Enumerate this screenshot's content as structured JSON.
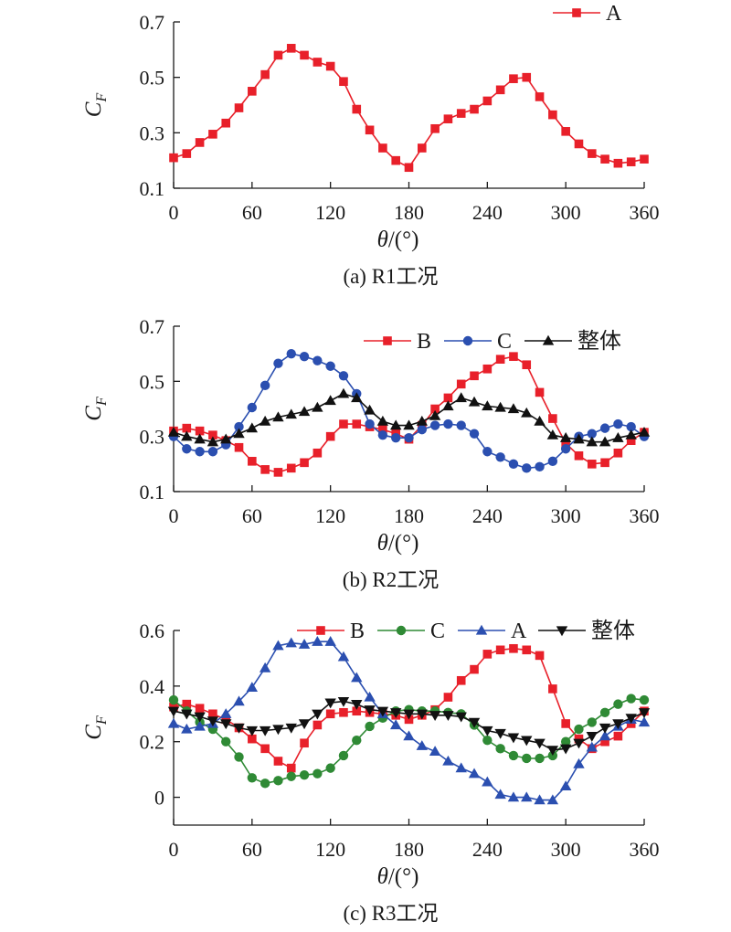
{
  "colors": {
    "red": "#e8202a",
    "blue": "#2b4fb0",
    "green": "#2f8a35",
    "black": "#111111"
  },
  "chart_data": [
    {
      "type": "line",
      "caption": "(a) R1工况",
      "xlabel": "θ/(°)",
      "ylabel": "C",
      "ylabel_sub": "F",
      "xlim": [
        0,
        360
      ],
      "ylim": [
        0.1,
        0.7
      ],
      "xticks": [
        0,
        60,
        120,
        180,
        240,
        300,
        360
      ],
      "yticks": [
        0.1,
        0.3,
        0.5,
        0.7
      ],
      "ytick_labels": [
        "0.1",
        "0.3",
        "0.5",
        "0.7"
      ],
      "legend_placement": "top-right",
      "x": [
        0,
        10,
        20,
        30,
        40,
        50,
        60,
        70,
        80,
        90,
        100,
        110,
        120,
        130,
        140,
        150,
        160,
        170,
        180,
        190,
        200,
        210,
        220,
        230,
        240,
        250,
        260,
        270,
        280,
        290,
        300,
        310,
        320,
        330,
        340,
        350,
        360
      ],
      "series": [
        {
          "name": "A",
          "color": "#e8202a",
          "marker": "square",
          "values": [
            0.21,
            0.225,
            0.265,
            0.295,
            0.335,
            0.39,
            0.45,
            0.51,
            0.58,
            0.605,
            0.58,
            0.555,
            0.54,
            0.485,
            0.385,
            0.31,
            0.245,
            0.2,
            0.175,
            0.245,
            0.315,
            0.35,
            0.37,
            0.385,
            0.415,
            0.455,
            0.495,
            0.5,
            0.43,
            0.365,
            0.305,
            0.26,
            0.225,
            0.205,
            0.19,
            0.195,
            0.205
          ]
        }
      ]
    },
    {
      "type": "line",
      "caption": "(b) R2工况",
      "xlabel": "θ/(°)",
      "ylabel": "C",
      "ylabel_sub": "F",
      "xlim": [
        0,
        360
      ],
      "ylim": [
        0.1,
        0.7
      ],
      "xticks": [
        0,
        60,
        120,
        180,
        240,
        300,
        360
      ],
      "yticks": [
        0.1,
        0.3,
        0.5,
        0.7
      ],
      "ytick_labels": [
        "0.1",
        "0.3",
        "0.5",
        "0.7"
      ],
      "legend_placement": "top-right",
      "x": [
        0,
        10,
        20,
        30,
        40,
        50,
        60,
        70,
        80,
        90,
        100,
        110,
        120,
        130,
        140,
        150,
        160,
        170,
        180,
        190,
        200,
        210,
        220,
        230,
        240,
        250,
        260,
        270,
        280,
        290,
        300,
        310,
        320,
        330,
        340,
        350,
        360
      ],
      "series": [
        {
          "name": "B",
          "color": "#e8202a",
          "marker": "square",
          "values": [
            0.32,
            0.33,
            0.32,
            0.305,
            0.285,
            0.26,
            0.21,
            0.18,
            0.17,
            0.185,
            0.205,
            0.24,
            0.3,
            0.345,
            0.345,
            0.335,
            0.325,
            0.31,
            0.29,
            0.34,
            0.4,
            0.44,
            0.49,
            0.52,
            0.545,
            0.58,
            0.59,
            0.56,
            0.46,
            0.365,
            0.275,
            0.23,
            0.2,
            0.205,
            0.24,
            0.285,
            0.315
          ]
        },
        {
          "name": "C",
          "color": "#2b4fb0",
          "marker": "circle",
          "values": [
            0.3,
            0.255,
            0.245,
            0.245,
            0.27,
            0.335,
            0.405,
            0.485,
            0.565,
            0.6,
            0.59,
            0.575,
            0.555,
            0.52,
            0.455,
            0.345,
            0.305,
            0.295,
            0.295,
            0.325,
            0.34,
            0.345,
            0.34,
            0.31,
            0.245,
            0.225,
            0.2,
            0.185,
            0.19,
            0.21,
            0.255,
            0.3,
            0.31,
            0.33,
            0.345,
            0.335,
            0.3
          ]
        },
        {
          "name": "整体",
          "color": "#111111",
          "marker": "triangle-up",
          "values": [
            0.315,
            0.3,
            0.29,
            0.28,
            0.29,
            0.31,
            0.33,
            0.355,
            0.37,
            0.38,
            0.39,
            0.405,
            0.43,
            0.455,
            0.44,
            0.395,
            0.355,
            0.34,
            0.34,
            0.355,
            0.375,
            0.41,
            0.44,
            0.425,
            0.41,
            0.405,
            0.4,
            0.385,
            0.355,
            0.305,
            0.295,
            0.29,
            0.28,
            0.28,
            0.295,
            0.305,
            0.315
          ]
        }
      ]
    },
    {
      "type": "line",
      "caption": "(c) R3工况",
      "xlabel": "θ/(°)",
      "ylabel": "C",
      "ylabel_sub": "F",
      "xlim": [
        0,
        360
      ],
      "ylim": [
        -0.1,
        0.6
      ],
      "xticks": [
        0,
        60,
        120,
        180,
        240,
        300,
        360
      ],
      "yticks": [
        0,
        0.2,
        0.4,
        0.6
      ],
      "ytick_labels": [
        "0",
        "0.2",
        "0.4",
        "0.6"
      ],
      "legend_placement": "top-right",
      "x": [
        0,
        10,
        20,
        30,
        40,
        50,
        60,
        70,
        80,
        90,
        100,
        110,
        120,
        130,
        140,
        150,
        160,
        170,
        180,
        190,
        200,
        210,
        220,
        230,
        240,
        250,
        260,
        270,
        280,
        290,
        300,
        310,
        320,
        330,
        340,
        350,
        360
      ],
      "series": [
        {
          "name": "B",
          "color": "#e8202a",
          "marker": "square",
          "values": [
            0.325,
            0.335,
            0.32,
            0.3,
            0.28,
            0.25,
            0.21,
            0.175,
            0.13,
            0.105,
            0.195,
            0.26,
            0.3,
            0.305,
            0.31,
            0.305,
            0.3,
            0.295,
            0.28,
            0.295,
            0.315,
            0.36,
            0.42,
            0.46,
            0.515,
            0.53,
            0.535,
            0.53,
            0.51,
            0.39,
            0.265,
            0.21,
            0.175,
            0.2,
            0.22,
            0.265,
            0.31
          ]
        },
        {
          "name": "C",
          "color": "#2f8a35",
          "marker": "circle",
          "values": [
            0.35,
            0.31,
            0.27,
            0.245,
            0.2,
            0.145,
            0.07,
            0.05,
            0.06,
            0.075,
            0.08,
            0.085,
            0.105,
            0.15,
            0.205,
            0.255,
            0.285,
            0.31,
            0.315,
            0.31,
            0.31,
            0.305,
            0.3,
            0.26,
            0.205,
            0.175,
            0.15,
            0.14,
            0.14,
            0.15,
            0.2,
            0.245,
            0.27,
            0.305,
            0.335,
            0.355,
            0.35
          ]
        },
        {
          "name": "A",
          "color": "#2b4fb0",
          "marker": "triangle-up",
          "values": [
            0.265,
            0.245,
            0.255,
            0.265,
            0.3,
            0.345,
            0.395,
            0.465,
            0.545,
            0.555,
            0.55,
            0.56,
            0.56,
            0.505,
            0.43,
            0.36,
            0.3,
            0.26,
            0.22,
            0.185,
            0.165,
            0.13,
            0.105,
            0.085,
            0.055,
            0.01,
            0.0,
            0.0,
            -0.01,
            -0.01,
            0.04,
            0.12,
            0.18,
            0.22,
            0.255,
            0.28,
            0.27
          ]
        },
        {
          "name": "整体",
          "color": "#111111",
          "marker": "triangle-down",
          "values": [
            0.31,
            0.3,
            0.29,
            0.275,
            0.265,
            0.25,
            0.24,
            0.24,
            0.245,
            0.25,
            0.265,
            0.3,
            0.34,
            0.345,
            0.335,
            0.315,
            0.31,
            0.305,
            0.3,
            0.3,
            0.295,
            0.295,
            0.29,
            0.27,
            0.24,
            0.23,
            0.215,
            0.205,
            0.195,
            0.17,
            0.175,
            0.195,
            0.22,
            0.25,
            0.265,
            0.285,
            0.305
          ]
        }
      ]
    }
  ]
}
